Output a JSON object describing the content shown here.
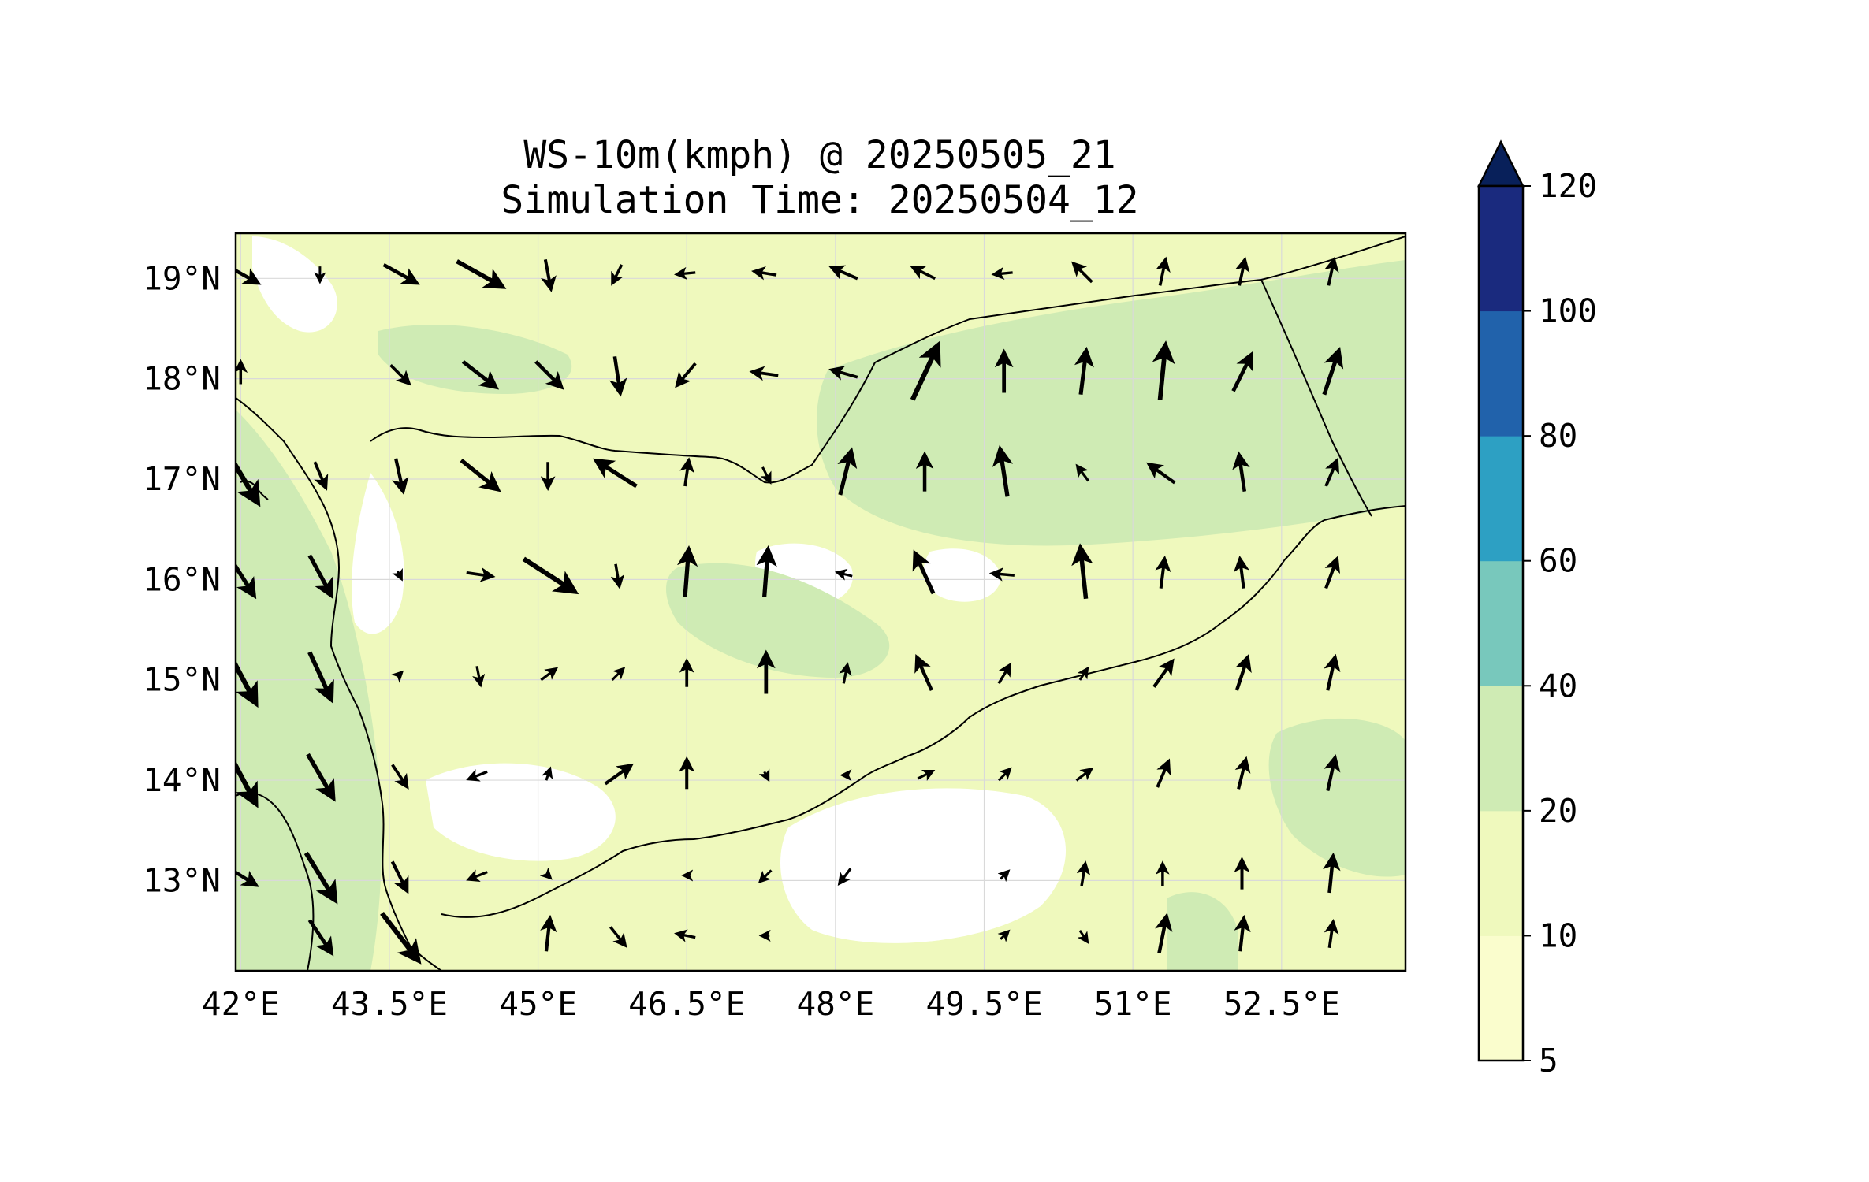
{
  "title": {
    "line1": "WS-10m(kmph) @ 20250505_21",
    "line2": "Simulation Time: 20250504_12"
  },
  "axes": {
    "x_ticks": [
      {
        "value": 42.0,
        "label": "42°E"
      },
      {
        "value": 43.5,
        "label": "43.5°E"
      },
      {
        "value": 45.0,
        "label": "45°E"
      },
      {
        "value": 46.5,
        "label": "46.5°E"
      },
      {
        "value": 48.0,
        "label": "48°E"
      },
      {
        "value": 49.5,
        "label": "49.5°E"
      },
      {
        "value": 51.0,
        "label": "51°E"
      },
      {
        "value": 52.5,
        "label": "52.5°E"
      }
    ],
    "y_ticks": [
      {
        "value": 19,
        "label": "19°N"
      },
      {
        "value": 18,
        "label": "18°N"
      },
      {
        "value": 17,
        "label": "17°N"
      },
      {
        "value": 16,
        "label": "16°N"
      },
      {
        "value": 15,
        "label": "15°N"
      },
      {
        "value": 14,
        "label": "14°N"
      },
      {
        "value": 13,
        "label": "13°N"
      }
    ],
    "lon_range": [
      41.95,
      53.75
    ],
    "lat_range": [
      12.1,
      19.45
    ]
  },
  "colorbar": {
    "levels": [
      {
        "from": 5,
        "to": 10,
        "color": "#fafdcd"
      },
      {
        "from": 10,
        "to": 20,
        "color": "#eff9bd"
      },
      {
        "from": 20,
        "to": 40,
        "color": "#cfebb4"
      },
      {
        "from": 40,
        "to": 60,
        "color": "#78c8bc"
      },
      {
        "from": 60,
        "to": 80,
        "color": "#2da0c3"
      },
      {
        "from": 80,
        "to": 100,
        "color": "#2162ab"
      },
      {
        "from": 100,
        "to": 120,
        "color": "#1a2a7e"
      }
    ],
    "extend_color": "#08205a",
    "tick_labels": [
      "5",
      "10",
      "20",
      "40",
      "60",
      "80",
      "100",
      "120"
    ]
  },
  "map_colors": {
    "calm": "#ffffff",
    "light": "#fafdcd",
    "moderate": "#eff9bd",
    "fresh": "#cfebb4"
  },
  "wind_vectors_note": "Wind direction arrows scaled by speed (u, v in kmph)",
  "wind_vectors": [
    {
      "lon": 42.0,
      "lat": 19.05,
      "u": 18,
      "v": -10
    },
    {
      "lon": 42.8,
      "lat": 19.05,
      "u": 0,
      "v": -8
    },
    {
      "lon": 43.6,
      "lat": 19.05,
      "u": 18,
      "v": -10
    },
    {
      "lon": 44.4,
      "lat": 19.05,
      "u": 25,
      "v": -14
    },
    {
      "lon": 45.1,
      "lat": 19.05,
      "u": 3,
      "v": -16
    },
    {
      "lon": 45.8,
      "lat": 19.05,
      "u": -5,
      "v": -10
    },
    {
      "lon": 46.5,
      "lat": 19.05,
      "u": -10,
      "v": -1
    },
    {
      "lon": 47.3,
      "lat": 19.05,
      "u": -12,
      "v": 2
    },
    {
      "lon": 48.1,
      "lat": 19.05,
      "u": -14,
      "v": 6
    },
    {
      "lon": 48.9,
      "lat": 19.05,
      "u": -12,
      "v": 6
    },
    {
      "lon": 49.7,
      "lat": 19.05,
      "u": -10,
      "v": -1
    },
    {
      "lon": 50.5,
      "lat": 19.05,
      "u": -10,
      "v": 10
    },
    {
      "lon": 51.3,
      "lat": 19.05,
      "u": 3,
      "v": 14
    },
    {
      "lon": 52.1,
      "lat": 19.05,
      "u": 3,
      "v": 14
    },
    {
      "lon": 53.0,
      "lat": 19.05,
      "u": 3,
      "v": 14
    },
    {
      "lon": 42.0,
      "lat": 18.05,
      "u": 0,
      "v": 12
    },
    {
      "lon": 43.6,
      "lat": 18.05,
      "u": 10,
      "v": -10
    },
    {
      "lon": 44.4,
      "lat": 18.05,
      "u": 18,
      "v": -14
    },
    {
      "lon": 45.1,
      "lat": 18.05,
      "u": 14,
      "v": -14
    },
    {
      "lon": 45.8,
      "lat": 18.05,
      "u": 3,
      "v": -20
    },
    {
      "lon": 46.5,
      "lat": 18.05,
      "u": -10,
      "v": -12
    },
    {
      "lon": 47.3,
      "lat": 18.05,
      "u": -14,
      "v": 2
    },
    {
      "lon": 48.1,
      "lat": 18.05,
      "u": -14,
      "v": 4
    },
    {
      "lon": 48.9,
      "lat": 18.05,
      "u": 14,
      "v": 30
    },
    {
      "lon": 49.7,
      "lat": 18.05,
      "u": 0,
      "v": 22
    },
    {
      "lon": 50.5,
      "lat": 18.05,
      "u": 3,
      "v": 24
    },
    {
      "lon": 51.3,
      "lat": 18.05,
      "u": 3,
      "v": 30
    },
    {
      "lon": 52.1,
      "lat": 18.05,
      "u": 10,
      "v": 20
    },
    {
      "lon": 53.0,
      "lat": 18.05,
      "u": 8,
      "v": 24
    },
    {
      "lon": 42.0,
      "lat": 17.05,
      "u": 18,
      "v": -30
    },
    {
      "lon": 42.8,
      "lat": 17.05,
      "u": 6,
      "v": -14
    },
    {
      "lon": 43.6,
      "lat": 17.05,
      "u": 4,
      "v": -18
    },
    {
      "lon": 44.4,
      "lat": 17.05,
      "u": 20,
      "v": -16
    },
    {
      "lon": 45.1,
      "lat": 17.05,
      "u": 0,
      "v": -14
    },
    {
      "lon": 45.8,
      "lat": 17.05,
      "u": -22,
      "v": 14
    },
    {
      "lon": 46.5,
      "lat": 17.05,
      "u": 2,
      "v": 14
    },
    {
      "lon": 47.3,
      "lat": 17.05,
      "u": 4,
      "v": -8
    },
    {
      "lon": 48.1,
      "lat": 17.05,
      "u": 6,
      "v": 24
    },
    {
      "lon": 48.9,
      "lat": 17.05,
      "u": 0,
      "v": 20
    },
    {
      "lon": 49.7,
      "lat": 17.05,
      "u": -4,
      "v": 26
    },
    {
      "lon": 50.5,
      "lat": 17.05,
      "u": -6,
      "v": 8
    },
    {
      "lon": 51.3,
      "lat": 17.05,
      "u": -14,
      "v": 10
    },
    {
      "lon": 52.1,
      "lat": 17.05,
      "u": -3,
      "v": 20
    },
    {
      "lon": 53.0,
      "lat": 17.05,
      "u": 6,
      "v": 14
    },
    {
      "lon": 42.0,
      "lat": 16.05,
      "u": 14,
      "v": -22
    },
    {
      "lon": 42.8,
      "lat": 16.05,
      "u": 12,
      "v": -22
    },
    {
      "lon": 43.6,
      "lat": 16.05,
      "u": 2,
      "v": -4
    },
    {
      "lon": 44.4,
      "lat": 16.05,
      "u": 14,
      "v": -2
    },
    {
      "lon": 45.1,
      "lat": 16.05,
      "u": 28,
      "v": -18
    },
    {
      "lon": 45.8,
      "lat": 16.05,
      "u": 2,
      "v": -12
    },
    {
      "lon": 46.5,
      "lat": 16.05,
      "u": 2,
      "v": 26
    },
    {
      "lon": 47.3,
      "lat": 16.05,
      "u": 2,
      "v": 26
    },
    {
      "lon": 48.1,
      "lat": 16.05,
      "u": -8,
      "v": 2
    },
    {
      "lon": 48.9,
      "lat": 16.05,
      "u": -10,
      "v": 22
    },
    {
      "lon": 49.7,
      "lat": 16.05,
      "u": -12,
      "v": 1
    },
    {
      "lon": 50.5,
      "lat": 16.05,
      "u": -3,
      "v": 28
    },
    {
      "lon": 51.3,
      "lat": 16.05,
      "u": 2,
      "v": 16
    },
    {
      "lon": 52.1,
      "lat": 16.05,
      "u": -2,
      "v": 16
    },
    {
      "lon": 53.0,
      "lat": 16.05,
      "u": 6,
      "v": 16
    },
    {
      "lon": 42.0,
      "lat": 15.05,
      "u": 16,
      "v": -30
    },
    {
      "lon": 42.8,
      "lat": 15.05,
      "u": 12,
      "v": -26
    },
    {
      "lon": 43.6,
      "lat": 15.05,
      "u": 2,
      "v": 2
    },
    {
      "lon": 44.4,
      "lat": 15.05,
      "u": 2,
      "v": -10
    },
    {
      "lon": 45.1,
      "lat": 15.05,
      "u": 8,
      "v": 6
    },
    {
      "lon": 45.8,
      "lat": 15.05,
      "u": 6,
      "v": 6
    },
    {
      "lon": 46.5,
      "lat": 15.05,
      "u": 0,
      "v": 14
    },
    {
      "lon": 47.3,
      "lat": 15.05,
      "u": 0,
      "v": 22
    },
    {
      "lon": 48.1,
      "lat": 15.05,
      "u": 2,
      "v": 10
    },
    {
      "lon": 48.9,
      "lat": 15.05,
      "u": -8,
      "v": 18
    },
    {
      "lon": 49.7,
      "lat": 15.05,
      "u": 6,
      "v": 10
    },
    {
      "lon": 50.5,
      "lat": 15.05,
      "u": 4,
      "v": 6
    },
    {
      "lon": 51.3,
      "lat": 15.05,
      "u": 10,
      "v": 14
    },
    {
      "lon": 52.1,
      "lat": 15.05,
      "u": 6,
      "v": 18
    },
    {
      "lon": 53.0,
      "lat": 15.05,
      "u": 4,
      "v": 18
    },
    {
      "lon": 42.0,
      "lat": 14.05,
      "u": 16,
      "v": -30
    },
    {
      "lon": 42.8,
      "lat": 14.05,
      "u": 14,
      "v": -24
    },
    {
      "lon": 43.6,
      "lat": 14.05,
      "u": 8,
      "v": -12
    },
    {
      "lon": 44.4,
      "lat": 14.05,
      "u": -10,
      "v": -4
    },
    {
      "lon": 45.1,
      "lat": 14.05,
      "u": 2,
      "v": 6
    },
    {
      "lon": 45.8,
      "lat": 14.05,
      "u": 14,
      "v": 10
    },
    {
      "lon": 46.5,
      "lat": 14.05,
      "u": 0,
      "v": 16
    },
    {
      "lon": 47.3,
      "lat": 14.05,
      "u": 2,
      "v": -4
    },
    {
      "lon": 48.1,
      "lat": 14.05,
      "u": -2,
      "v": 0
    },
    {
      "lon": 48.9,
      "lat": 14.05,
      "u": 8,
      "v": 4
    },
    {
      "lon": 49.7,
      "lat": 14.05,
      "u": 6,
      "v": 6
    },
    {
      "lon": 50.5,
      "lat": 14.05,
      "u": 8,
      "v": 6
    },
    {
      "lon": 51.3,
      "lat": 14.05,
      "u": 6,
      "v": 14
    },
    {
      "lon": 52.1,
      "lat": 14.05,
      "u": 4,
      "v": 16
    },
    {
      "lon": 53.0,
      "lat": 14.05,
      "u": 4,
      "v": 18
    },
    {
      "lon": 42.0,
      "lat": 13.05,
      "u": 16,
      "v": -10
    },
    {
      "lon": 42.8,
      "lat": 13.05,
      "u": 16,
      "v": -26
    },
    {
      "lon": 43.6,
      "lat": 13.05,
      "u": 8,
      "v": -16
    },
    {
      "lon": 44.4,
      "lat": 13.05,
      "u": -10,
      "v": -4
    },
    {
      "lon": 45.1,
      "lat": 13.05,
      "u": 2,
      "v": -2
    },
    {
      "lon": 46.5,
      "lat": 13.05,
      "u": -2,
      "v": 0
    },
    {
      "lon": 47.3,
      "lat": 13.05,
      "u": -6,
      "v": -6
    },
    {
      "lon": 48.1,
      "lat": 13.05,
      "u": -6,
      "v": -8
    },
    {
      "lon": 49.7,
      "lat": 13.05,
      "u": 4,
      "v": 4
    },
    {
      "lon": 50.5,
      "lat": 13.05,
      "u": 2,
      "v": 12
    },
    {
      "lon": 51.3,
      "lat": 13.05,
      "u": 0,
      "v": 12
    },
    {
      "lon": 52.1,
      "lat": 13.05,
      "u": 0,
      "v": 16
    },
    {
      "lon": 53.0,
      "lat": 13.05,
      "u": 2,
      "v": 20
    },
    {
      "lon": 42.8,
      "lat": 12.45,
      "u": 12,
      "v": -18
    },
    {
      "lon": 43.6,
      "lat": 12.45,
      "u": 20,
      "v": -26
    },
    {
      "lon": 45.1,
      "lat": 12.45,
      "u": 2,
      "v": 18
    },
    {
      "lon": 45.8,
      "lat": 12.45,
      "u": 8,
      "v": -10
    },
    {
      "lon": 46.5,
      "lat": 12.45,
      "u": -10,
      "v": 2
    },
    {
      "lon": 47.3,
      "lat": 12.45,
      "u": -4,
      "v": 0
    },
    {
      "lon": 49.7,
      "lat": 12.45,
      "u": 4,
      "v": 4
    },
    {
      "lon": 50.5,
      "lat": 12.45,
      "u": 4,
      "v": -6
    },
    {
      "lon": 51.3,
      "lat": 12.45,
      "u": 4,
      "v": 20
    },
    {
      "lon": 52.1,
      "lat": 12.45,
      "u": 2,
      "v": 18
    },
    {
      "lon": 53.0,
      "lat": 12.45,
      "u": 2,
      "v": 14
    }
  ]
}
